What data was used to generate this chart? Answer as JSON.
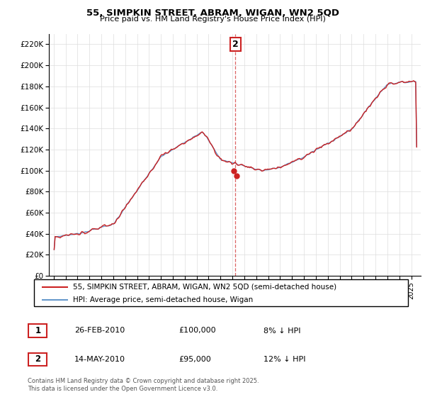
{
  "title": "55, SIMPKIN STREET, ABRAM, WIGAN, WN2 5QD",
  "subtitle": "Price paid vs. HM Land Registry's House Price Index (HPI)",
  "hpi_color": "#6699cc",
  "price_color": "#cc2222",
  "vline_color": "#cc2222",
  "annotation_box_color": "#cc2222",
  "background": "#ffffff",
  "grid_color": "#dddddd",
  "ylim": [
    0,
    230000
  ],
  "yticks": [
    0,
    20000,
    40000,
    60000,
    80000,
    100000,
    120000,
    140000,
    160000,
    180000,
    200000,
    220000
  ],
  "legend_property_label": "55, SIMPKIN STREET, ABRAM, WIGAN, WN2 5QD (semi-detached house)",
  "legend_hpi_label": "HPI: Average price, semi-detached house, Wigan",
  "footer": "Contains HM Land Registry data © Crown copyright and database right 2025.\nThis data is licensed under the Open Government Licence v3.0.",
  "transaction_table": [
    [
      "1",
      "26-FEB-2010",
      "£100,000",
      "8% ↓ HPI"
    ],
    [
      "2",
      "14-MAY-2010",
      "£95,000",
      "12% ↓ HPI"
    ]
  ],
  "t1_year": 2010.121,
  "t2_year": 2010.37,
  "t1_price": 100000,
  "t2_price": 95000,
  "vline_x": 2010.25
}
